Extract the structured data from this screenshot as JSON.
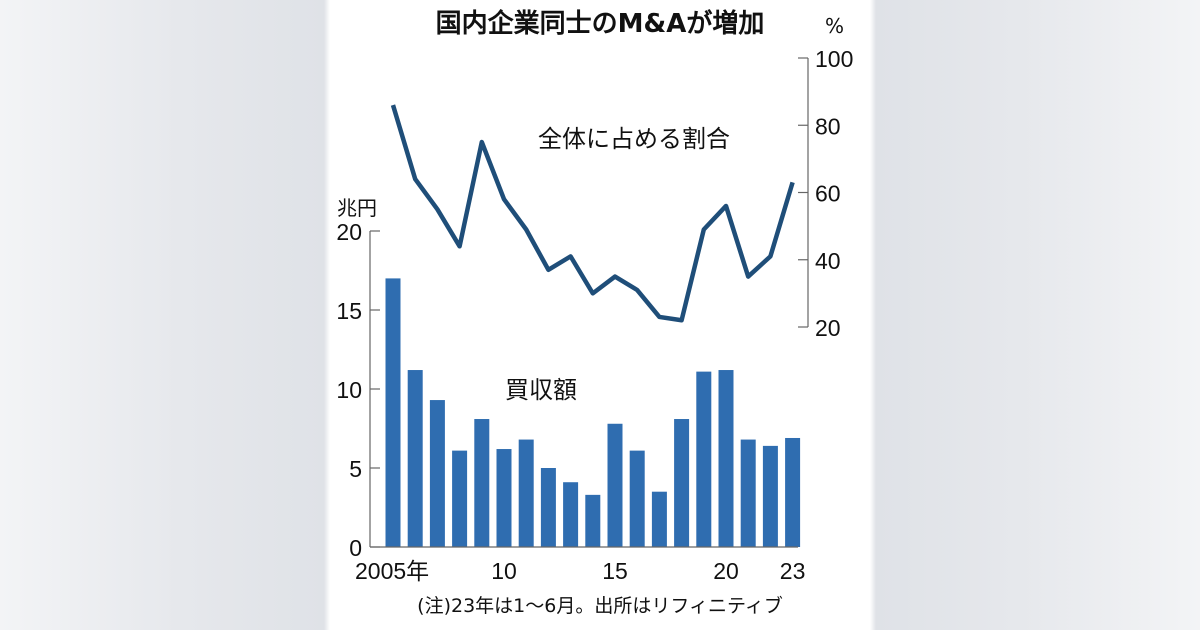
{
  "chart_data": {
    "type": "bar+line",
    "title": "国内企業同士のM&Aが増加",
    "categories": [
      "2005",
      "2006",
      "2007",
      "2008",
      "2009",
      "2010",
      "2011",
      "2012",
      "2013",
      "2014",
      "2015",
      "2016",
      "2017",
      "2018",
      "2019",
      "2020",
      "2021",
      "2022",
      "2023"
    ],
    "x_tick_labels": [
      {
        "index": 0,
        "label": "2005年"
      },
      {
        "index": 5,
        "label": "10"
      },
      {
        "index": 10,
        "label": "15"
      },
      {
        "index": 15,
        "label": "20"
      },
      {
        "index": 18,
        "label": "23"
      }
    ],
    "series": [
      {
        "name": "買収額",
        "type": "bar",
        "axis": "left",
        "color": "#2f6db0",
        "values": [
          17.0,
          11.2,
          9.3,
          6.1,
          8.1,
          6.2,
          6.8,
          5.0,
          4.1,
          3.3,
          7.8,
          6.1,
          3.5,
          8.1,
          11.1,
          11.2,
          6.8,
          6.4,
          6.9
        ]
      },
      {
        "name": "全体に占める割合",
        "type": "line",
        "axis": "right",
        "color": "#1f4e79",
        "values": [
          86,
          64,
          55,
          44,
          75,
          58,
          49,
          37,
          41,
          30,
          35,
          31,
          23,
          22,
          49,
          56,
          35,
          41,
          63
        ]
      }
    ],
    "left_axis": {
      "unit": "兆円",
      "ylim": [
        0,
        20
      ],
      "ticks": [
        "0",
        "5",
        "10",
        "15",
        "20"
      ]
    },
    "right_axis": {
      "unit": "%",
      "ylim": [
        20,
        100
      ],
      "ticks": [
        "20",
        "40",
        "60",
        "80",
        "100"
      ]
    },
    "note": "(注)23年は1～6月。出所はリフィニティブ"
  }
}
